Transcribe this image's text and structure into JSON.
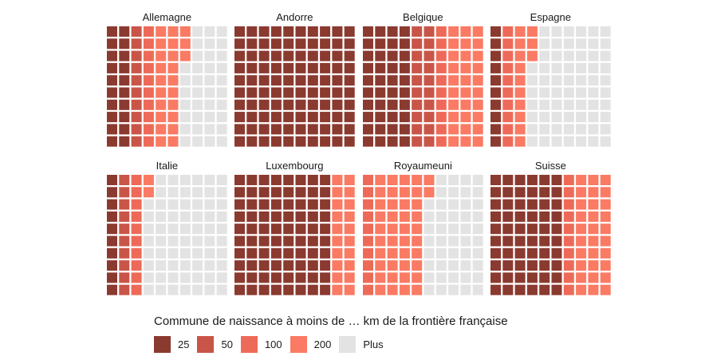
{
  "chart_data": {
    "type": "waffle",
    "legend_title": "Commune de naissance à moins de … km de la frontière française",
    "legend": [
      {
        "label": "25",
        "color": "#8B3A30"
      },
      {
        "label": "50",
        "color": "#C95548"
      },
      {
        "label": "100",
        "color": "#EE6A58"
      },
      {
        "label": "200",
        "color": "#FA7A63"
      },
      {
        "label": "Plus",
        "color": "#E3E3E3"
      }
    ],
    "grid": {
      "rows": 10,
      "cols": 10,
      "fill_order": "column-major"
    },
    "panels": [
      {
        "title": "Allemagne",
        "counts": [
          20,
          10,
          10,
          23,
          37
        ]
      },
      {
        "title": "Andorre",
        "counts": [
          100,
          0,
          0,
          0,
          0
        ]
      },
      {
        "title": "Belgique",
        "counts": [
          40,
          20,
          10,
          30,
          0
        ]
      },
      {
        "title": "Espagne",
        "counts": [
          10,
          0,
          10,
          13,
          67
        ]
      },
      {
        "title": "Italie",
        "counts": [
          10,
          10,
          10,
          2,
          68
        ]
      },
      {
        "title": "Luxembourg",
        "counts": [
          80,
          0,
          0,
          20,
          0
        ]
      },
      {
        "title": "Royaumeuni",
        "counts": [
          0,
          0,
          10,
          42,
          48
        ]
      },
      {
        "title": "Suisse",
        "counts": [
          60,
          0,
          10,
          30,
          0
        ]
      }
    ]
  }
}
